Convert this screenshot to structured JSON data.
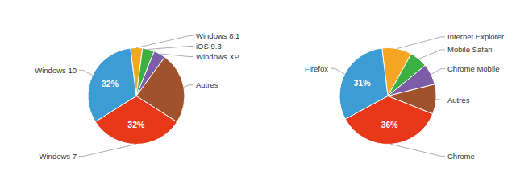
{
  "chart_data": [
    {
      "type": "pie",
      "categories": [
        "Windows 8.1",
        "iOS 9.3",
        "Windows XP",
        "Autres",
        "Windows 7",
        "Windows 10"
      ],
      "values": [
        4,
        4,
        4,
        24,
        32,
        32
      ],
      "colors": [
        "#f5a623",
        "#3cb043",
        "#7b5ea7",
        "#a0522d",
        "#e8381a",
        "#3d9cd4"
      ],
      "value_labels": [
        null,
        null,
        null,
        null,
        "32%",
        "32%"
      ]
    },
    {
      "type": "pie",
      "categories": [
        "Internet Explorer",
        "Mobile Safari",
        "Chrome Mobile",
        "Autres",
        "Chrome",
        "Firefox"
      ],
      "values": [
        10,
        6,
        7,
        10,
        36,
        31
      ],
      "colors": [
        "#f5a623",
        "#3cb043",
        "#7b5ea7",
        "#a0522d",
        "#e8381a",
        "#3d9cd4"
      ],
      "value_labels": [
        null,
        null,
        null,
        null,
        "36%",
        "31%"
      ]
    }
  ]
}
